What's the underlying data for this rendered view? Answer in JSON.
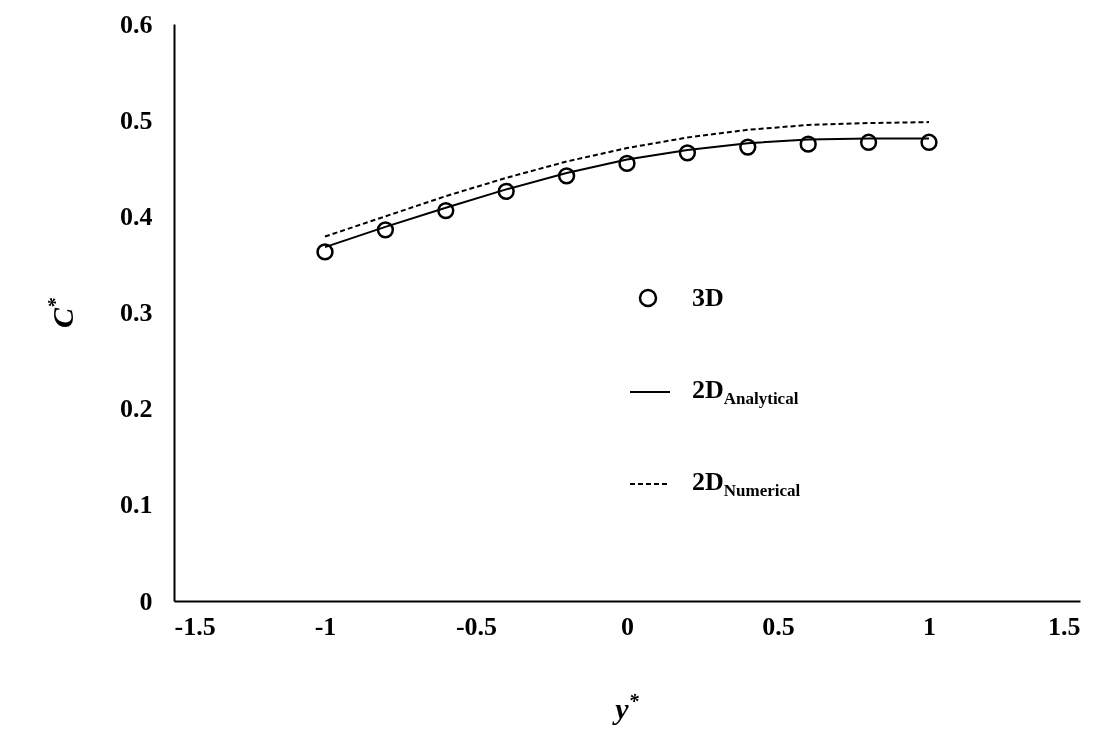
{
  "chart_data": {
    "type": "line",
    "xlabel": "y$^{*}$",
    "ylabel": "C$^{*}$",
    "xlim": [
      -1.5,
      1.5
    ],
    "xticks": [
      -1.5,
      -1,
      -0.5,
      0,
      0.5,
      1,
      1.5
    ],
    "ylim": [
      0,
      0.6
    ],
    "yticks": [
      0,
      0.1,
      0.2,
      0.3,
      0.4,
      0.5,
      0.6
    ],
    "legend": "right",
    "series": [
      {
        "name": "3D",
        "type": "scatter",
        "marker": "circle",
        "color": "#000000",
        "x": [
          -1,
          -0.8,
          -0.6,
          -0.4,
          -0.2,
          0,
          0.2,
          0.4,
          0.6,
          0.8,
          1
        ],
        "values": [
          0.363,
          0.386,
          0.406,
          0.426,
          0.442,
          0.455,
          0.466,
          0.472,
          0.475,
          0.477,
          0.477
        ]
      },
      {
        "name": "2D$_{Analytical}$",
        "line_style": "solid",
        "color": "#000000",
        "x": [
          -1,
          -0.8,
          -0.6,
          -0.4,
          -0.2,
          0,
          0.2,
          0.4,
          0.6,
          0.8,
          1
        ],
        "values": [
          0.368,
          0.389,
          0.409,
          0.428,
          0.445,
          0.459,
          0.469,
          0.476,
          0.48,
          0.481,
          0.481
        ]
      },
      {
        "name": "2D$_{Numerical}$",
        "line_style": "dashed",
        "color": "#000000",
        "x": [
          -1,
          -0.8,
          -0.6,
          -0.4,
          -0.2,
          0,
          0.2,
          0.4,
          0.6,
          0.8,
          1
        ],
        "values": [
          0.379,
          0.4,
          0.421,
          0.44,
          0.457,
          0.471,
          0.482,
          0.49,
          0.495,
          0.497,
          0.498
        ]
      }
    ]
  }
}
